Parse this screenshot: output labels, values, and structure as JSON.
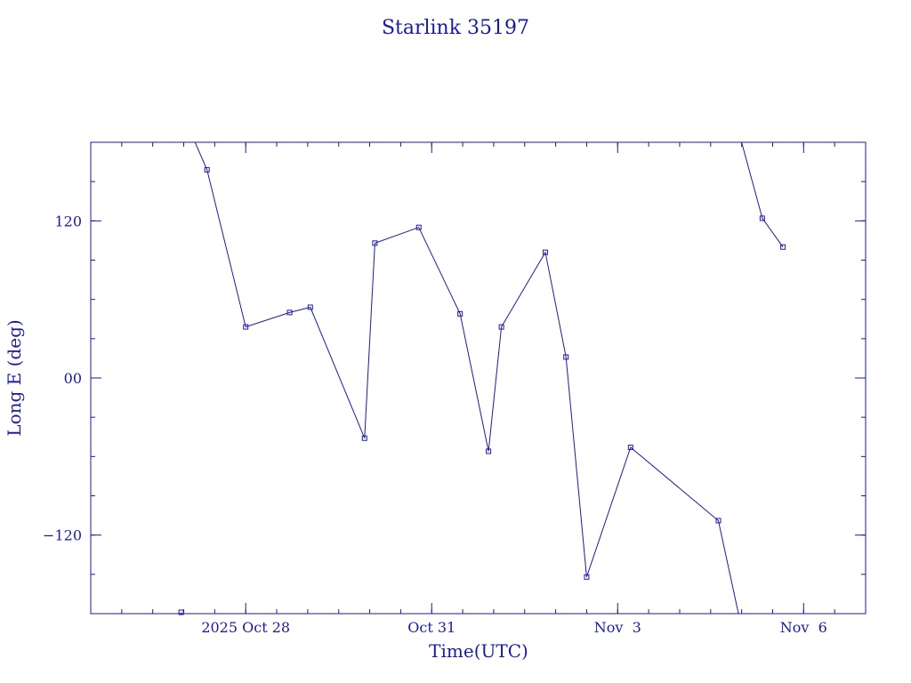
{
  "chart_data": {
    "type": "line",
    "title": "Starlink 35197",
    "xlabel": "Time(UTC)",
    "ylabel": "Long E (deg)",
    "x_start": "2025-10-25T12:00:00Z",
    "x_end": "2025-11-07T00:00:00Z",
    "xlim": [
      "2025-10-25T12:00",
      "2025-11-07T00:00"
    ],
    "ylim": [
      -180,
      180
    ],
    "x_ticks": [
      {
        "label": "2025 Oct 28",
        "date": "2025-10-28T00:00"
      },
      {
        "label": "Oct 31",
        "date": "2025-10-31T00:00"
      },
      {
        "label": "Nov  3",
        "date": "2025-11-03T00:00"
      },
      {
        "label": "Nov  6",
        "date": "2025-11-06T00:00"
      }
    ],
    "y_ticks": [
      {
        "label": "120",
        "value": 120
      },
      {
        "label": "00",
        "value": 0
      },
      {
        "label": "-120",
        "value": -120
      }
    ],
    "color": "#1a1aa6",
    "series": [
      {
        "segments": [
          [
            {
              "t": "2025-10-27T00:00",
              "lon": 200
            },
            {
              "t": "2025-10-27T09:00",
              "lon": 159
            },
            {
              "t": "2025-10-28T00:00",
              "lon": 39
            },
            {
              "t": "2025-10-28T17:00",
              "lon": 50
            },
            {
              "t": "2025-10-29T01:00",
              "lon": 54
            },
            {
              "t": "2025-10-29T22:00",
              "lon": -46
            },
            {
              "t": "2025-10-30T02:00",
              "lon": 103
            },
            {
              "t": "2025-10-30T19:00",
              "lon": 115
            },
            {
              "t": "2025-10-31T11:00",
              "lon": 49
            },
            {
              "t": "2025-10-31T22:00",
              "lon": -56
            },
            {
              "t": "2025-11-01T03:00",
              "lon": 39
            },
            {
              "t": "2025-11-01T20:00",
              "lon": 96
            },
            {
              "t": "2025-11-02T04:00",
              "lon": 16
            },
            {
              "t": "2025-11-02T12:00",
              "lon": -152
            },
            {
              "t": "2025-11-03T05:00",
              "lon": -53
            },
            {
              "t": "2025-11-04T15:00",
              "lon": -109
            },
            {
              "t": "2025-11-04T23:00",
              "lon": -182
            }
          ],
          [
            {
              "t": "2025-10-26T23:00",
              "lon": -179
            },
            {
              "t": "2025-10-26T22:00",
              "lon": -187
            }
          ],
          [
            {
              "t": "2025-11-05T00:00",
              "lon": 180
            },
            {
              "t": "2025-11-05T08:00",
              "lon": 122
            },
            {
              "t": "2025-11-05T16:00",
              "lon": 100
            }
          ]
        ],
        "markers": [
          "2025-10-26T23:00",
          "2025-10-27T09:00",
          "2025-10-28T00:00",
          "2025-10-28T17:00",
          "2025-10-29T01:00",
          "2025-10-29T22:00",
          "2025-10-30T02:00",
          "2025-10-30T19:00",
          "2025-10-31T11:00",
          "2025-10-31T22:00",
          "2025-11-01T03:00",
          "2025-11-01T20:00",
          "2025-11-02T04:00",
          "2025-11-02T12:00",
          "2025-11-03T05:00",
          "2025-11-04T15:00",
          "2025-11-05T08:00",
          "2025-11-05T16:00"
        ]
      }
    ]
  }
}
